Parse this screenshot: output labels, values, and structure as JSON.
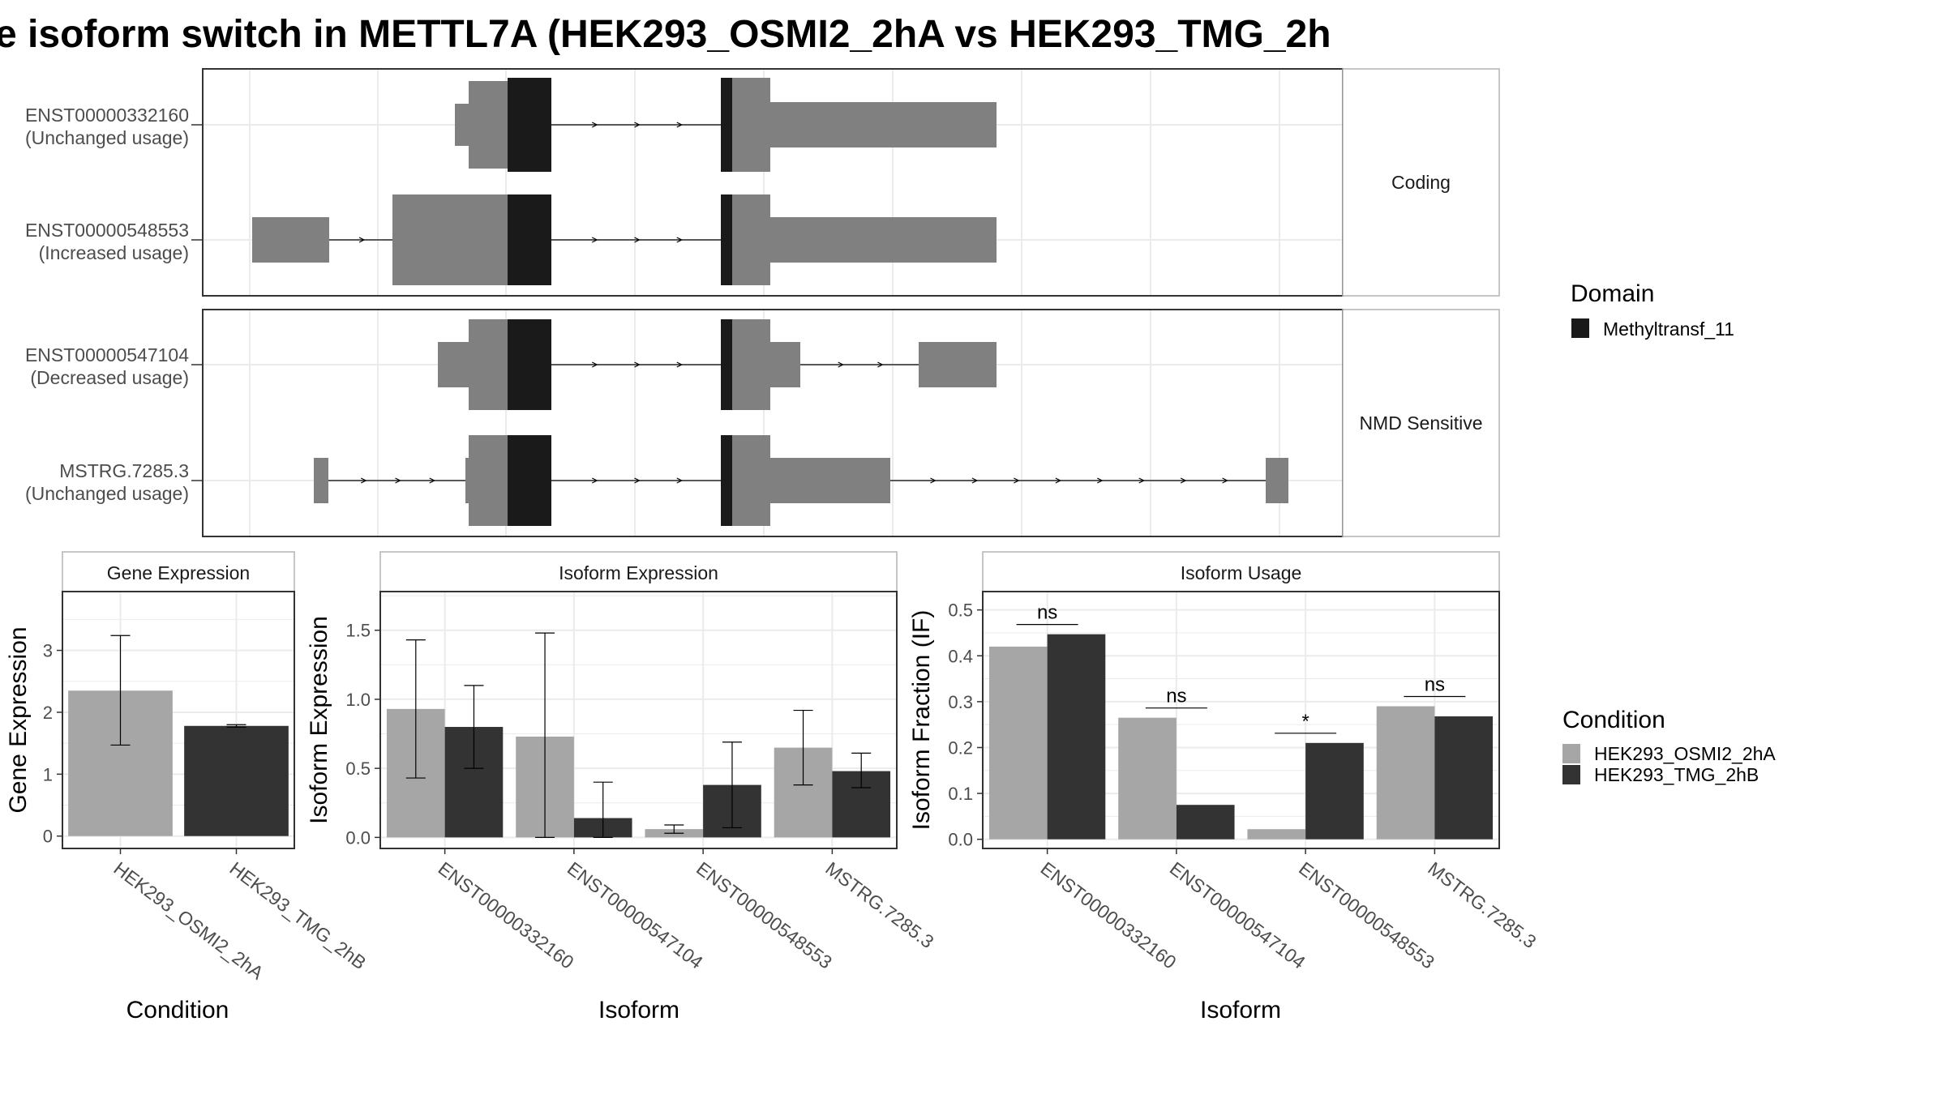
{
  "title": "e isoform switch in METTL7A (HEK293_OSMI2_2hA vs HEK293_TMG_2h",
  "colors": {
    "utr": "#808080",
    "domain": "#1a1a1a",
    "cond1": "#a6a6a6",
    "cond2": "#333333",
    "grid": "#ebebeb",
    "panel_border": "#333333",
    "strip_border": "#b3b3b3"
  },
  "legends": {
    "domain": {
      "title": "Domain",
      "items": [
        "Methyltransf_11"
      ]
    },
    "condition": {
      "title": "Condition",
      "items": [
        "HEK293_OSMI2_2hA",
        "HEK293_TMG_2hB"
      ]
    }
  },
  "transcript_panel": {
    "groups": [
      {
        "label": "Coding",
        "transcripts": [
          {
            "id": "ENST00000332160",
            "usage": "(Unchanged usage)"
          },
          {
            "id": "ENST00000548553",
            "usage": "(Increased usage)"
          }
        ]
      },
      {
        "label": "NMD Sensitive",
        "transcripts": [
          {
            "id": "ENST00000547104",
            "usage": "(Decreased usage)"
          },
          {
            "id": "MSTRG.7285.3",
            "usage": "(Unchanged usage)"
          }
        ]
      }
    ]
  },
  "chart_data": [
    {
      "type": "bar",
      "panel": "Gene Expression",
      "xlabel": "Condition",
      "ylabel": "Gene Expression",
      "categories": [
        "HEK293_OSMI2_2hA",
        "HEK293_TMG_2hB"
      ],
      "values": [
        2.35,
        1.78
      ],
      "error_low": [
        1.47,
        1.76
      ],
      "error_high": [
        3.24,
        1.8
      ],
      "yticks": [
        "0",
        "1",
        "2",
        "3"
      ],
      "ylim": [
        -0.2,
        3.95
      ],
      "grid": true
    },
    {
      "type": "bar",
      "panel": "Isoform Expression",
      "xlabel": "Isoform",
      "ylabel": "Isoform Expression",
      "categories": [
        "ENST00000332160",
        "ENST00000547104",
        "ENST00000548553",
        "MSTRG.7285.3"
      ],
      "series": [
        {
          "name": "HEK293_OSMI2_2hA",
          "values": [
            0.93,
            0.73,
            0.06,
            0.65
          ],
          "error_low": [
            0.43,
            0.0,
            0.03,
            0.38
          ],
          "error_high": [
            1.43,
            1.48,
            0.09,
            0.92
          ]
        },
        {
          "name": "HEK293_TMG_2hB",
          "values": [
            0.8,
            0.14,
            0.38,
            0.48
          ],
          "error_low": [
            0.5,
            0.0,
            0.07,
            0.36
          ],
          "error_high": [
            1.1,
            0.4,
            0.69,
            0.61
          ]
        }
      ],
      "yticks": [
        "0.0",
        "0.5",
        "1.0",
        "1.5"
      ],
      "ylim": [
        -0.08,
        1.78
      ],
      "grid": true
    },
    {
      "type": "bar",
      "panel": "Isoform Usage",
      "xlabel": "Isoform",
      "ylabel": "Isoform Fraction (IF)",
      "categories": [
        "ENST00000332160",
        "ENST00000547104",
        "ENST00000548553",
        "MSTRG.7285.3"
      ],
      "series": [
        {
          "name": "HEK293_OSMI2_2hA",
          "values": [
            0.42,
            0.265,
            0.022,
            0.29
          ]
        },
        {
          "name": "HEK293_TMG_2hB",
          "values": [
            0.447,
            0.075,
            0.21,
            0.268
          ]
        }
      ],
      "significance": [
        "ns",
        "ns",
        "*",
        "ns"
      ],
      "yticks": [
        "0.0",
        "0.1",
        "0.2",
        "0.3",
        "0.4",
        "0.5"
      ],
      "ylim": [
        -0.02,
        0.54
      ],
      "grid": true
    }
  ]
}
